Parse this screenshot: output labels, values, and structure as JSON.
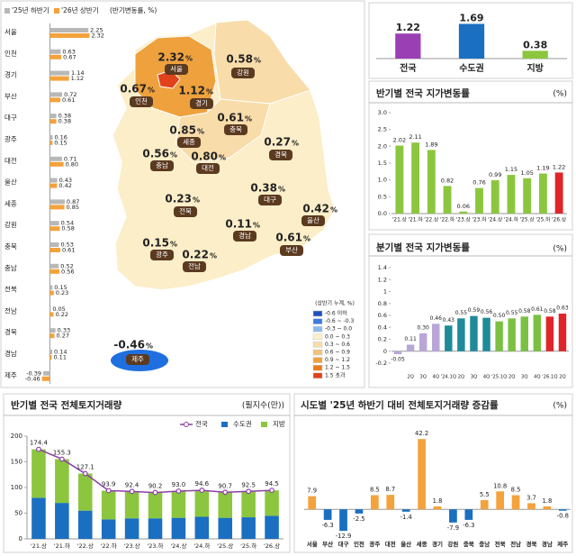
{
  "chart_data": [
    {
      "type": "hbar",
      "subtitle": "(반기변동률, %)",
      "categories": [
        "서울",
        "인천",
        "경기",
        "부산",
        "대구",
        "광주",
        "대전",
        "울산",
        "세종",
        "강원",
        "충북",
        "충남",
        "전북",
        "전남",
        "경북",
        "경남",
        "제주"
      ],
      "series": [
        {
          "name": "'25년 하반기",
          "color": "#b8b8b8",
          "values": [
            2.25,
            0.63,
            1.14,
            0.72,
            0.38,
            0.16,
            0.71,
            0.43,
            0.87,
            0.54,
            0.53,
            0.52,
            0.15,
            0.05,
            0.33,
            0.14,
            -0.39
          ]
        },
        {
          "name": "'26년 상반기",
          "color": "#f4a23c",
          "values": [
            2.32,
            0.67,
            1.12,
            0.61,
            0.38,
            0.15,
            0.8,
            0.42,
            0.85,
            0.58,
            0.61,
            0.56,
            0.23,
            0.22,
            0.27,
            0.11,
            -0.46
          ],
          "value_labels": [
            "2.32",
            "0.67",
            "1.12",
            "0.61",
            "0.38",
            "0.15",
            "0.80",
            "0.42",
            "0.85",
            "0.58",
            "0.61",
            "0.56",
            "0.23",
            "0.22",
            "0.27",
            "0.11",
            "-0.46"
          ]
        }
      ],
      "xlim": [
        -0.6,
        2.4
      ]
    },
    {
      "type": "bar",
      "categories": [
        "전국",
        "수도권",
        "지방"
      ],
      "values": [
        1.22,
        1.69,
        0.38
      ],
      "colors": [
        "#9b3fb5",
        "#1a6fc0",
        "#8cc63f"
      ],
      "ylim": [
        0,
        1.8
      ]
    },
    {
      "type": "bar",
      "title": "반기별 전국 지가변동률",
      "unit": "(%)",
      "categories": [
        "'21.상",
        "'21.하",
        "'22.상",
        "'22.하",
        "'23.상",
        "'23.하",
        "'24.상",
        "'24.하",
        "'25.상",
        "'25.하",
        "'26.상"
      ],
      "values": [
        2.02,
        2.11,
        1.89,
        0.82,
        0.06,
        0.76,
        0.99,
        1.15,
        1.05,
        1.19,
        1.22
      ],
      "colors": [
        "#8cc63f",
        "#8cc63f",
        "#8cc63f",
        "#8cc63f",
        "#8cc63f",
        "#8cc63f",
        "#8cc63f",
        "#8cc63f",
        "#8cc63f",
        "#8cc63f",
        "#e0252a"
      ],
      "ylim": [
        0,
        3
      ],
      "yticks": [
        {
          "value": 0,
          "label": "0.0"
        },
        0.5,
        {
          "value": 1,
          "label": "1.0"
        },
        1.5,
        {
          "value": 2,
          "label": "2.0"
        },
        2.5,
        {
          "value": 3,
          "label": "3.0"
        }
      ]
    },
    {
      "type": "bar",
      "title": "분기별 전국 지가변동률",
      "unit": "(%)",
      "categories": [
        null,
        "2Q",
        "3Q",
        "4Q",
        "'24.1Q",
        "2Q",
        "3Q",
        "4Q",
        "'25.1Q",
        "2Q",
        "3Q",
        "4Q",
        "'26.1Q",
        "2Q"
      ],
      "values": [
        -0.05,
        0.11,
        0.3,
        0.46,
        0.43,
        0.55,
        0.59,
        0.56,
        0.5,
        0.55,
        0.58,
        0.61,
        0.58,
        0.63
      ],
      "value_labels": [
        "-0.05",
        "0.11",
        "0.30",
        "0.46",
        "0.43",
        "0.55",
        "0.59",
        "0.56",
        "0.50",
        "0.55",
        "0.58",
        "0.61",
        "0.58",
        "0.63"
      ],
      "colors": [
        "#b9a6d8",
        "#b9a6d8",
        "#b9a6d8",
        "#b9a6d8",
        "#1f8a9a",
        "#1f8a9a",
        "#1f8a9a",
        "#1f8a9a",
        "#7ac142",
        "#7ac142",
        "#7ac142",
        "#7ac142",
        "#e0252a",
        "#e0252a"
      ],
      "ylim": [
        -0.2,
        1.4
      ],
      "yticks": [
        -0.2,
        0,
        0.2,
        0.4,
        0.6,
        0.8,
        1,
        1.2,
        1.4
      ]
    },
    {
      "type": "combo",
      "title": "반기별 전국 전체토지거래량",
      "unit": "(필지수(만))",
      "categories": [
        "'21.상",
        "'21.하",
        "'22.상",
        "'22.하",
        "'23.상",
        "'23.하",
        "'24.상",
        "'24.하",
        "'25.상",
        "'25.하",
        "'26.상"
      ],
      "series": [
        {
          "name": "전국",
          "type": "line",
          "color": "#8e3fa8",
          "values": [
            174.4,
            155.3,
            127.1,
            93.9,
            92.4,
            90.2,
            93.0,
            94.6,
            90.7,
            92.5,
            94.5
          ],
          "value_labels": [
            "174.4",
            "155.3",
            "127.1",
            "93.9",
            "92.4",
            "90.2",
            "93.0",
            "94.6",
            "90.7",
            "92.5",
            "94.5"
          ]
        },
        {
          "name": "수도권",
          "type": "bar",
          "color": "#1a6fc0",
          "values": [
            80,
            70,
            55,
            38,
            40,
            40,
            41,
            43,
            41,
            42,
            45
          ]
        },
        {
          "name": "지방",
          "type": "bar",
          "color": "#8cc63f",
          "values": [
            94.4,
            85.3,
            72.1,
            55.9,
            52.4,
            50.2,
            52,
            51.6,
            49.7,
            50.5,
            49.5
          ]
        }
      ],
      "ylim": [
        0,
        200
      ],
      "yticks": [
        0,
        50,
        100,
        150,
        200
      ]
    },
    {
      "type": "bar",
      "title": "시도별 '25년 하반기 대비 전체토지거래량 증감률",
      "unit": "(%)",
      "categories": [
        "서울",
        "부산",
        "대구",
        "인천",
        "광주",
        "대전",
        "울산",
        "세종",
        "경기",
        "강원",
        "충북",
        "충남",
        "전북",
        "전남",
        "경북",
        "경남",
        "제주"
      ],
      "values": [
        7.9,
        -6.3,
        -12.9,
        -2.5,
        8.5,
        8.7,
        -1.4,
        42.2,
        1.8,
        -7.9,
        -6.3,
        5.5,
        10.8,
        8.5,
        3.7,
        1.8,
        -0.8
      ],
      "color_positive": "#f4a23c",
      "color_negative": "#1a6fc0",
      "ylim": [
        -15,
        45
      ]
    }
  ],
  "map": {
    "unit": "%",
    "legend_title": "(상반기 누계, %)",
    "legend": [
      {
        "label": "-0.6 이하",
        "color": "#1f4fbf"
      },
      {
        "label": "-0.6 ~ -0.3",
        "color": "#3b7be0"
      },
      {
        "label": "-0.3 ~ 0.0",
        "color": "#8db8ee"
      },
      {
        "label": "0.0 ~ 0.3",
        "color": "#fbf0c6"
      },
      {
        "label": "0.3 ~ 0.6",
        "color": "#f8ddaa"
      },
      {
        "label": "0.6 ~ 0.9",
        "color": "#f3c27d"
      },
      {
        "label": "0.9 ~ 1.2",
        "color": "#eea13d"
      },
      {
        "label": "1.2 ~ 1.5",
        "color": "#e87f1a"
      },
      {
        "label": "1.5 초과",
        "color": "#e0421c"
      }
    ],
    "regions": [
      {
        "name": "서울",
        "value": 2.32
      },
      {
        "name": "인천",
        "value": 0.67
      },
      {
        "name": "경기",
        "value": 1.12
      },
      {
        "name": "강원",
        "value": 0.58
      },
      {
        "name": "세종",
        "value": 0.85
      },
      {
        "name": "충북",
        "value": 0.61
      },
      {
        "name": "충남",
        "value": 0.56
      },
      {
        "name": "대전",
        "value": 0.8,
        "value_label": "0.80"
      },
      {
        "name": "경북",
        "value": 0.27
      },
      {
        "name": "대구",
        "value": 0.38
      },
      {
        "name": "전북",
        "value": 0.23
      },
      {
        "name": "울산",
        "value": 0.42
      },
      {
        "name": "경남",
        "value": 0.11
      },
      {
        "name": "부산",
        "value": 0.61
      },
      {
        "name": "광주",
        "value": 0.15
      },
      {
        "name": "전남",
        "value": 0.22
      },
      {
        "name": "제주",
        "value": -0.46
      }
    ]
  }
}
